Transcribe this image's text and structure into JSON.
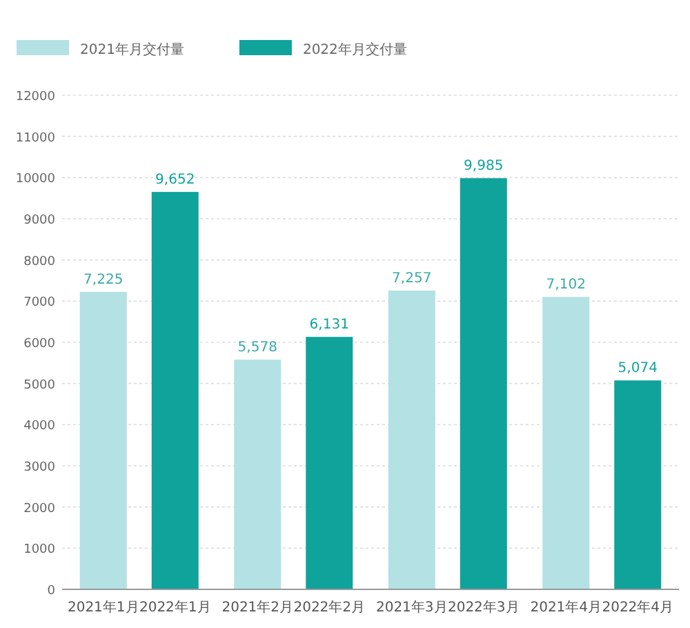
{
  "chart_data": {
    "type": "bar",
    "categories": [
      "2021年1月",
      "2022年1月",
      "2021年2月",
      "2022年2月",
      "2021年3月",
      "2022年3月",
      "2021年4月",
      "2022年4月"
    ],
    "series": [
      {
        "name": "2021年月交付量",
        "color": "#b3e1e4",
        "values": [
          7225,
          null,
          5578,
          null,
          7257,
          null,
          7102,
          null
        ],
        "value_labels": [
          "7,225",
          null,
          "5,578",
          null,
          "7,257",
          null,
          "7,102",
          null
        ]
      },
      {
        "name": "2022年月交付量",
        "color": "#0fa39c",
        "values": [
          null,
          9652,
          null,
          6131,
          null,
          9985,
          null,
          5074
        ],
        "value_labels": [
          null,
          "9,652",
          null,
          "6,131",
          null,
          "9,985",
          null,
          "5,074"
        ]
      }
    ],
    "ylim": [
      0,
      12000
    ],
    "yticks": [
      0,
      1000,
      2000,
      3000,
      4000,
      5000,
      6000,
      7000,
      8000,
      9000,
      10000,
      11000,
      12000
    ],
    "grid": "y",
    "legend": "top left"
  }
}
